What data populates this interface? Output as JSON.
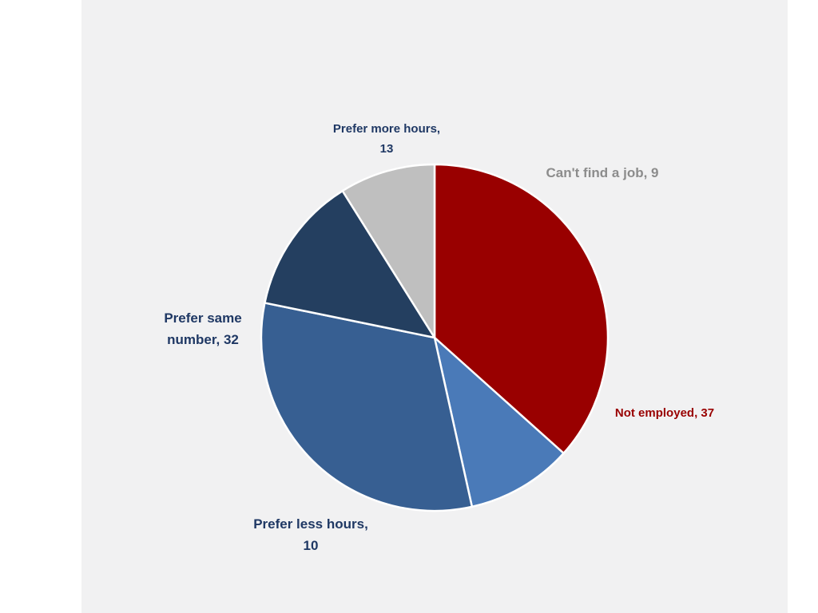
{
  "chart_data": {
    "type": "pie",
    "title": "",
    "slices": [
      {
        "label": "Not employed",
        "value": 37,
        "color": "#990000",
        "label_color": "#990000",
        "label_lines": [
          "Not employed, 37"
        ]
      },
      {
        "label": "Prefer less hours",
        "value": 10,
        "color": "#4a7ab8",
        "label_color": "#1f3864",
        "label_lines": [
          "Prefer less hours,",
          "10"
        ]
      },
      {
        "label": "Prefer same number",
        "value": 32,
        "color": "#375f92",
        "label_color": "#1f3864",
        "label_lines": [
          "Prefer same",
          "number, 32"
        ]
      },
      {
        "label": "Prefer more hours",
        "value": 13,
        "color": "#243f60",
        "label_color": "#1f3864",
        "label_lines": [
          "Prefer more hours,",
          "13"
        ]
      },
      {
        "label": "Can't find a job",
        "value": 9,
        "color": "#bfbfbf",
        "label_color": "#8c8c8c",
        "label_lines": [
          "Can't find a job, 9"
        ]
      }
    ]
  }
}
